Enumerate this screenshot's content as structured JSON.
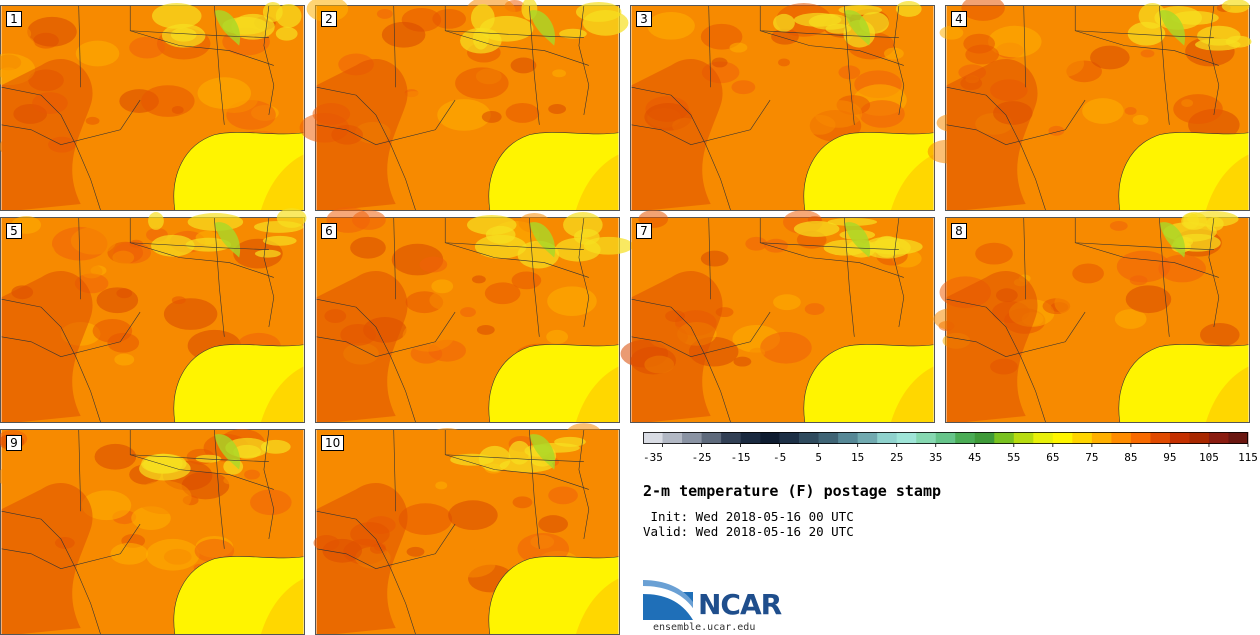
{
  "title": "2-m temperature (F) postage stamp",
  "init": " Init: Wed 2018-05-16 00 UTC",
  "valid": "Valid: Wed 2018-05-16 20 UTC",
  "url": "ensemble.ucar.edu",
  "logo": "NCAR",
  "members": [
    "1",
    "2",
    "3",
    "4",
    "5",
    "6",
    "7",
    "8",
    "9",
    "10"
  ],
  "colorbar": {
    "ticks": [
      "-35",
      "-25",
      "-15",
      "-5",
      "5",
      "15",
      "25",
      "35",
      "45",
      "55",
      "65",
      "75",
      "85",
      "95",
      "105",
      "115"
    ],
    "colors": [
      "#d9dce4",
      "#b2b8c4",
      "#8a93a3",
      "#5e6a7c",
      "#324055",
      "#1a2a40",
      "#0e1c30",
      "#1d3046",
      "#2f4b5e",
      "#3f6475",
      "#568896",
      "#71aab0",
      "#8fd2cd",
      "#9fe5d8",
      "#86d8b1",
      "#66c48a",
      "#4aac55",
      "#3e9a38",
      "#79c220",
      "#b7dc10",
      "#e8f00a",
      "#fff600",
      "#ffd500",
      "#ffb000",
      "#ff8c00",
      "#f86a00",
      "#e04a00",
      "#c43000",
      "#a82800",
      "#8a1c10",
      "#6a1610"
    ]
  }
}
